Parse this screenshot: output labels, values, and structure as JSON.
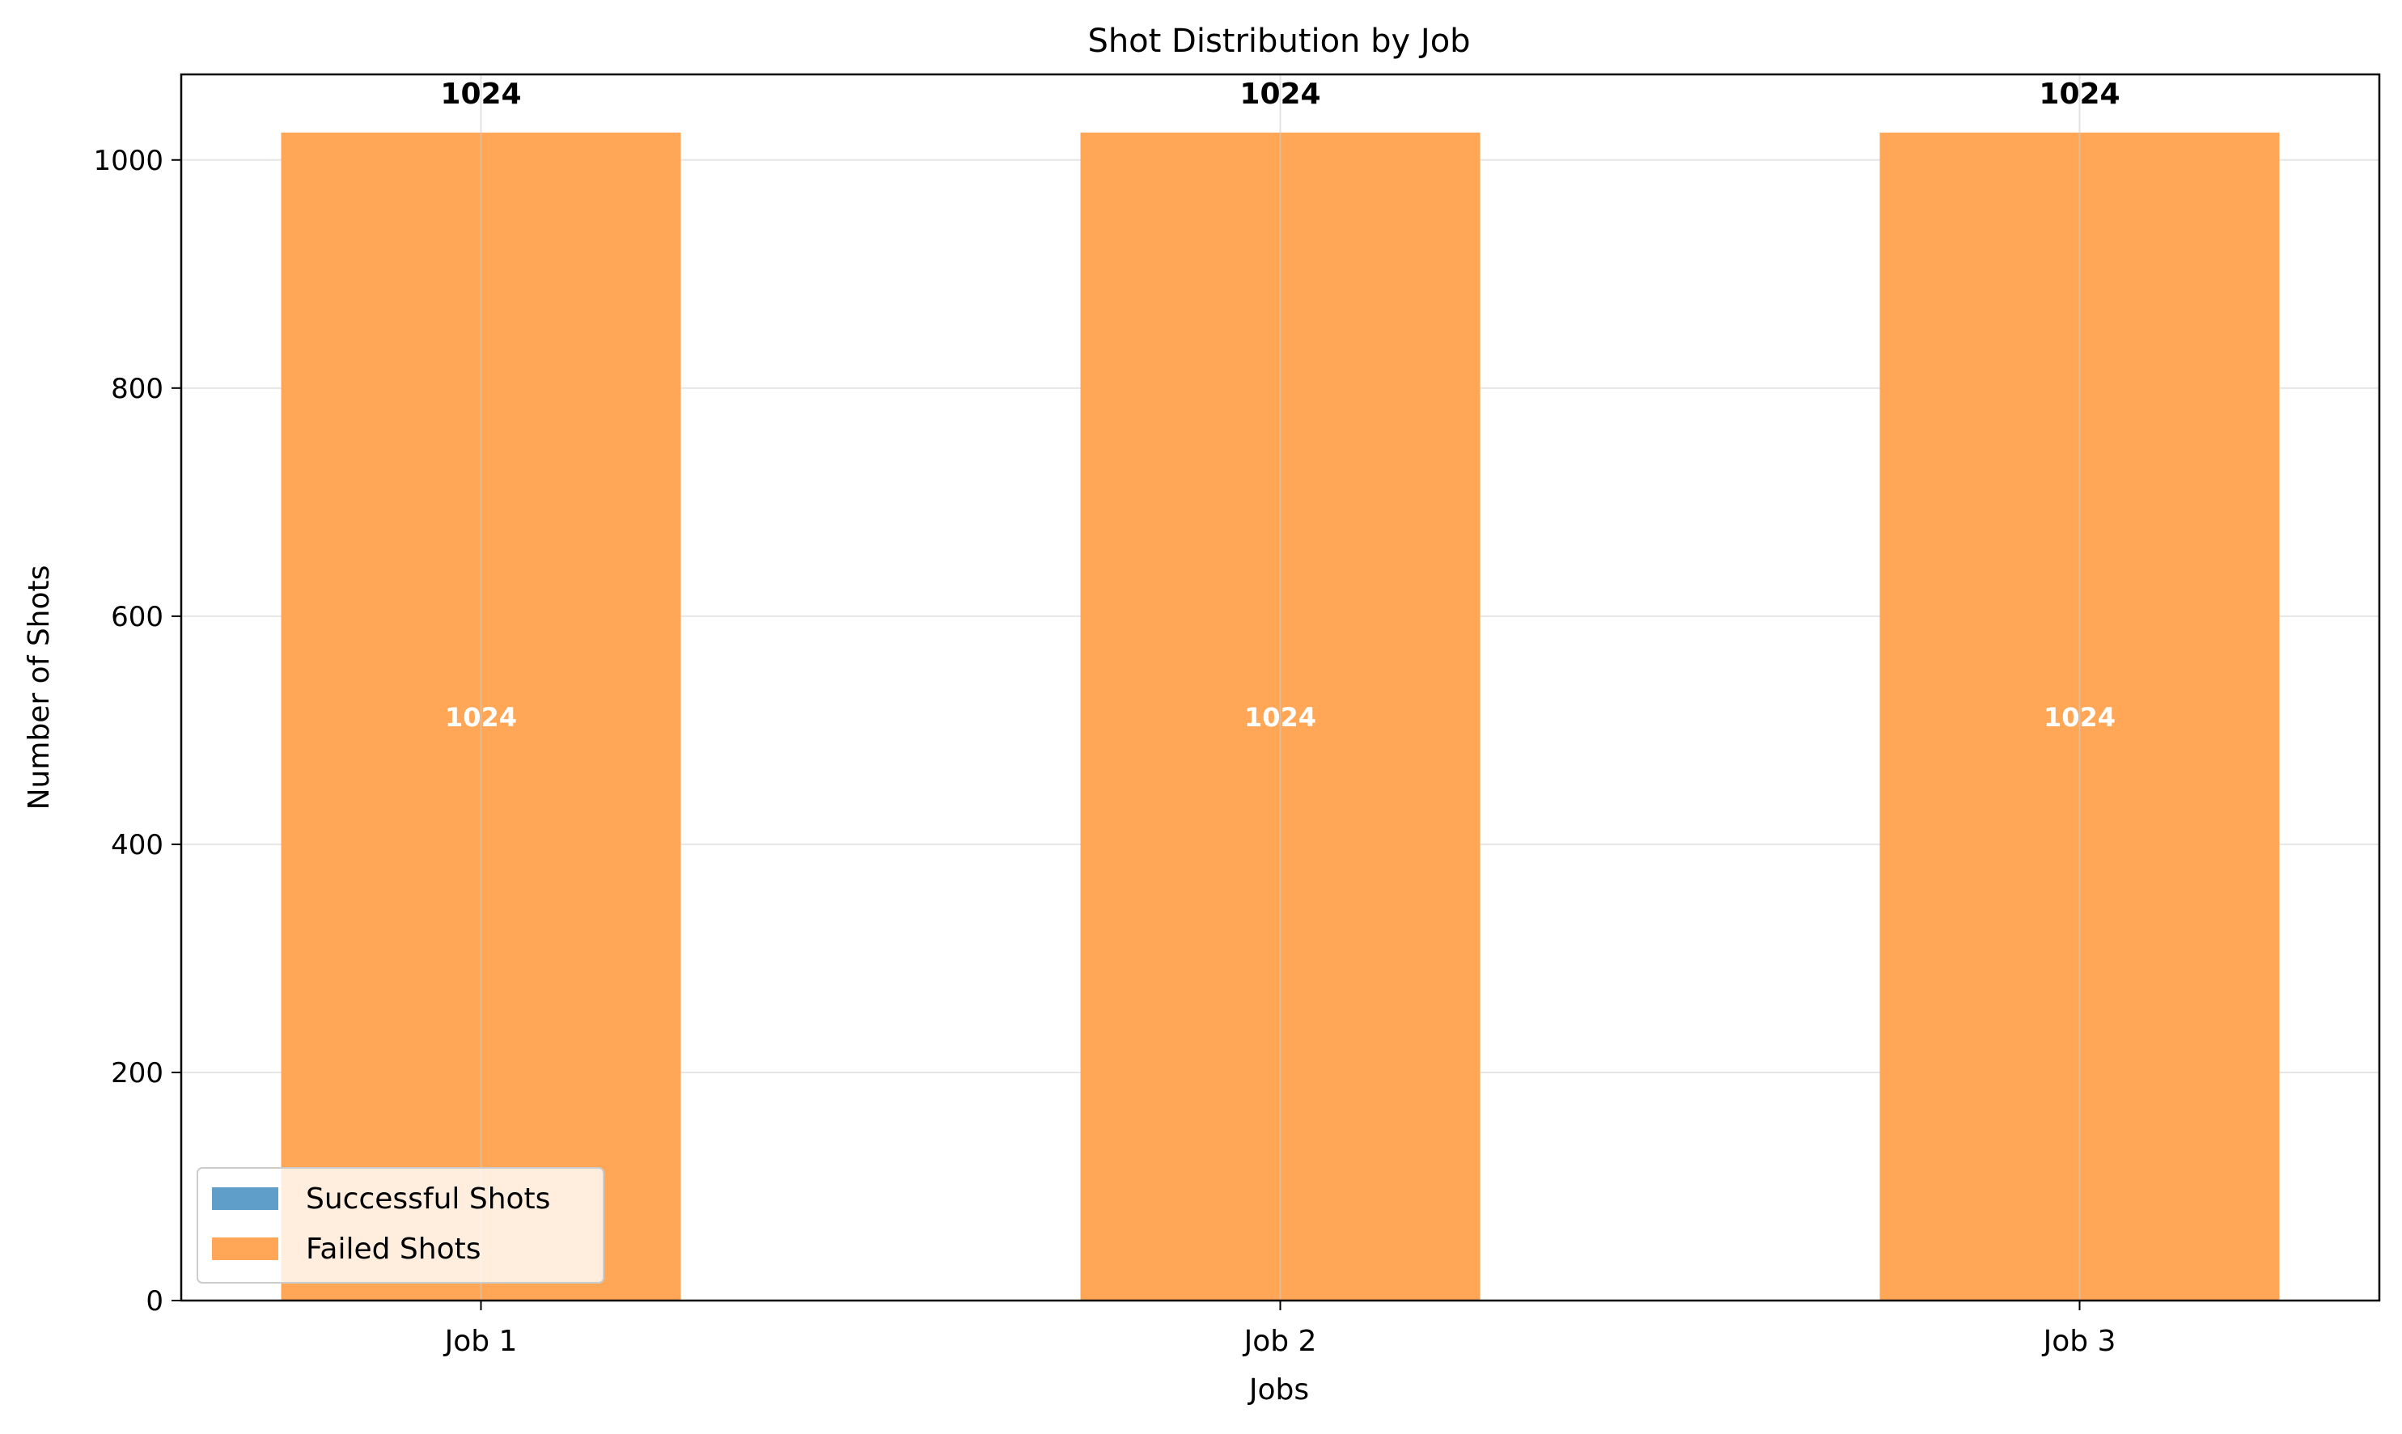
{
  "chart_data": {
    "type": "bar",
    "stacked": true,
    "title": "Shot Distribution by Job",
    "xlabel": "Jobs",
    "ylabel": "Number of Shots",
    "categories": [
      "Job 1",
      "Job 2",
      "Job 3"
    ],
    "series": [
      {
        "name": "Successful Shots",
        "values": [
          0,
          0,
          0
        ],
        "color": "#5f9ec9"
      },
      {
        "name": "Failed Shots",
        "values": [
          1024,
          1024,
          1024
        ],
        "color": "#ffa657"
      }
    ],
    "totals": [
      1024,
      1024,
      1024
    ],
    "segment_labels": [
      "1024",
      "1024",
      "1024"
    ],
    "total_labels": [
      "1024",
      "1024",
      "1024"
    ],
    "ylim": [
      0,
      1075
    ],
    "yticks": [
      0,
      200,
      400,
      600,
      800,
      1000
    ],
    "grid": true,
    "legend_position": "lower-left"
  }
}
